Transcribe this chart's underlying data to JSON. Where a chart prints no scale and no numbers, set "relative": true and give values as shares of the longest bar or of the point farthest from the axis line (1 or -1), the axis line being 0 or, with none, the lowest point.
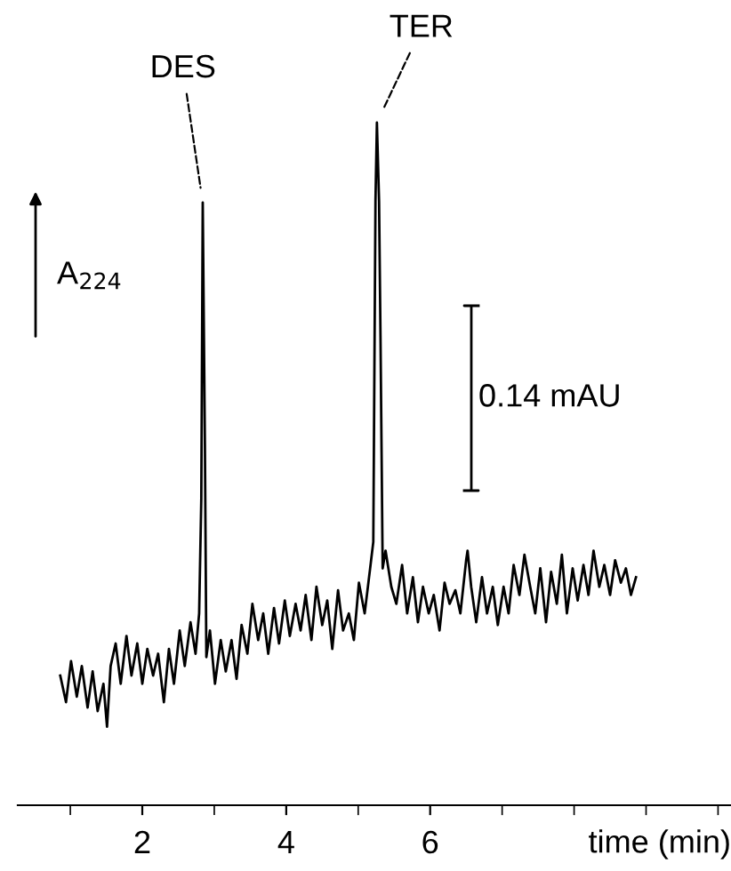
{
  "chart_data": {
    "type": "line",
    "relative": true,
    "xlabel": "time (min)",
    "ylabel": "A$_{224}$",
    "xlim": [
      0.27,
      10.18
    ],
    "xticks": [
      {
        "value": 1,
        "label": null
      },
      2,
      {
        "value": 3,
        "label": null
      },
      4,
      {
        "value": 5,
        "label": null
      },
      6,
      {
        "value": 7,
        "label": null
      },
      {
        "value": 8,
        "label": null
      },
      {
        "value": 9,
        "label": null
      },
      {
        "value": 10,
        "label": null
      }
    ],
    "grid": false,
    "line_style": "solid",
    "annotations": [
      {
        "text": "DES",
        "x": 2.84,
        "y": 0.883
      },
      {
        "text": "TER",
        "x": 5.26,
        "y": 1
      },
      "0.14 mAU"
    ],
    "series": [
      {
        "color": "#000000",
        "x": [
          0.86,
          0.94,
          1.01,
          1.09,
          1.16,
          1.24,
          1.31,
          1.38,
          1.46,
          1.51,
          1.56,
          1.63,
          1.7,
          1.78,
          1.85,
          1.93,
          2.0,
          2.07,
          2.15,
          2.22,
          2.3,
          2.37,
          2.44,
          2.52,
          2.59,
          2.67,
          2.74,
          2.79,
          2.82,
          2.84,
          2.87,
          2.89,
          2.94,
          3.01,
          3.09,
          3.16,
          3.24,
          3.31,
          3.38,
          3.46,
          3.53,
          3.61,
          3.68,
          3.75,
          3.83,
          3.9,
          3.98,
          4.05,
          4.13,
          4.2,
          4.27,
          4.35,
          4.42,
          4.5,
          4.57,
          4.64,
          4.72,
          4.79,
          4.87,
          4.94,
          5.01,
          5.09,
          5.16,
          5.21,
          5.24,
          5.26,
          5.29,
          5.31,
          5.34,
          5.38,
          5.46,
          5.53,
          5.61,
          5.68,
          5.76,
          5.83,
          5.9,
          5.98,
          6.05,
          6.13,
          6.2,
          6.27,
          6.35,
          6.42,
          6.5,
          6.52,
          6.57,
          6.64,
          6.72,
          6.79,
          6.87,
          6.94,
          7.02,
          7.09,
          7.16,
          7.24,
          7.31,
          7.39,
          7.46,
          7.53,
          7.61,
          7.68,
          7.76,
          7.83,
          7.9,
          7.98,
          8.05,
          8.13,
          8.2,
          8.27,
          8.35,
          8.42,
          8.5,
          8.57,
          8.65,
          8.72,
          8.79,
          8.86
        ],
        "values": [
          0.19,
          0.151,
          0.211,
          0.159,
          0.204,
          0.143,
          0.196,
          0.138,
          0.178,
          0.115,
          0.204,
          0.237,
          0.178,
          0.248,
          0.19,
          0.237,
          0.178,
          0.229,
          0.19,
          0.222,
          0.151,
          0.229,
          0.178,
          0.256,
          0.204,
          0.268,
          0.222,
          0.281,
          0.45,
          0.883,
          0.529,
          0.217,
          0.256,
          0.178,
          0.242,
          0.196,
          0.242,
          0.185,
          0.264,
          0.222,
          0.295,
          0.242,
          0.281,
          0.222,
          0.289,
          0.237,
          0.3,
          0.248,
          0.295,
          0.256,
          0.308,
          0.242,
          0.32,
          0.264,
          0.3,
          0.229,
          0.315,
          0.256,
          0.281,
          0.242,
          0.326,
          0.281,
          0.342,
          0.386,
          0.885,
          1,
          0.885,
          0.685,
          0.347,
          0.373,
          0.32,
          0.295,
          0.352,
          0.281,
          0.334,
          0.268,
          0.32,
          0.281,
          0.308,
          0.256,
          0.326,
          0.295,
          0.315,
          0.281,
          0.359,
          0.373,
          0.32,
          0.268,
          0.334,
          0.281,
          0.32,
          0.264,
          0.32,
          0.281,
          0.352,
          0.308,
          0.367,
          0.32,
          0.281,
          0.347,
          0.268,
          0.342,
          0.295,
          0.367,
          0.281,
          0.347,
          0.3,
          0.352,
          0.308,
          0.373,
          0.32,
          0.352,
          0.308,
          0.359,
          0.326,
          0.347,
          0.308,
          0.334
        ]
      }
    ]
  }
}
